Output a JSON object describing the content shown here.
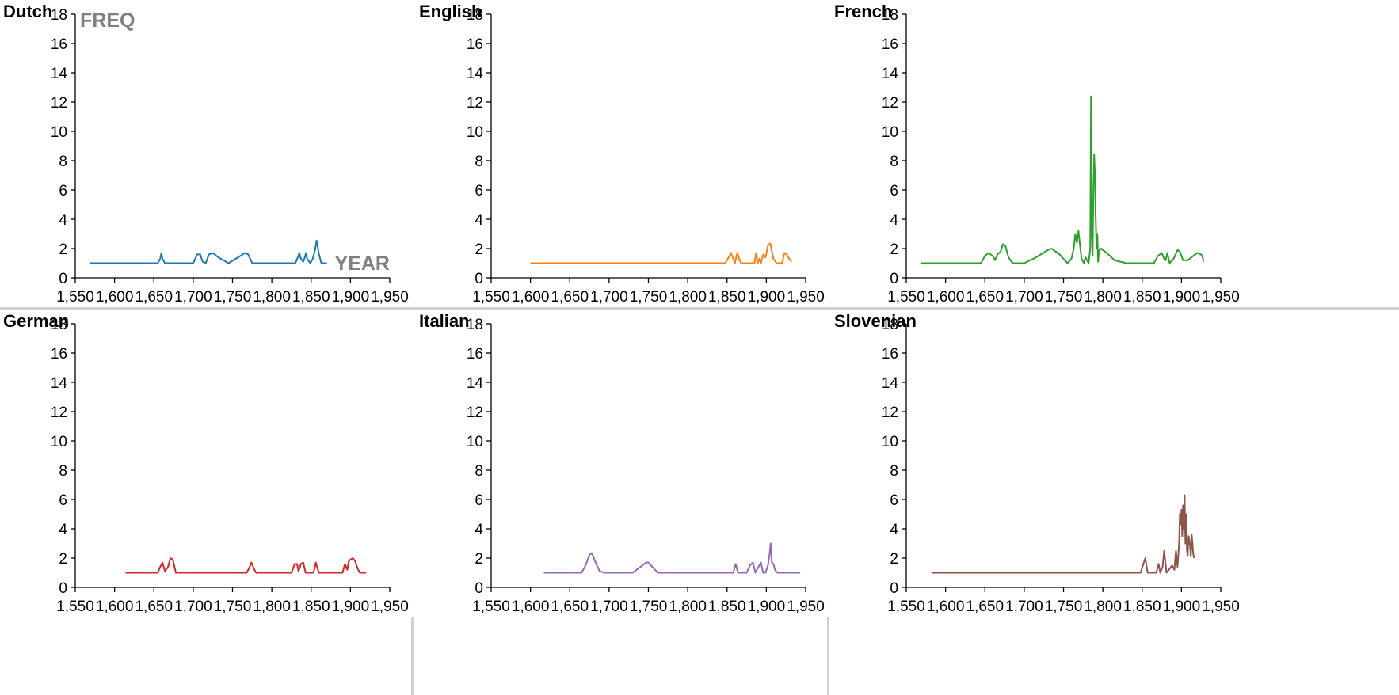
{
  "axis_titles": {
    "y": "FREQ",
    "x": "YEAR"
  },
  "chart_data": [
    {
      "type": "line",
      "title": "Dutch",
      "color": "#1f77b4",
      "xlim": [
        1550,
        1950
      ],
      "ylim": [
        0,
        18
      ],
      "x_ticks": [
        "1,550",
        "1,600",
        "1,650",
        "1,700",
        "1,750",
        "1,800",
        "1,850",
        "1,900",
        "1,950"
      ],
      "y_ticks": [
        "0",
        "2",
        "4",
        "6",
        "8",
        "10",
        "12",
        "14",
        "16",
        "18"
      ],
      "series": [
        {
          "x": [
            1568,
            1655,
            1658,
            1659.5,
            1661,
            1664,
            1700,
            1705,
            1709,
            1712,
            1716,
            1720,
            1725,
            1732,
            1745,
            1760,
            1766,
            1770,
            1775,
            1830,
            1833,
            1835,
            1837,
            1840,
            1842,
            1843.5,
            1845,
            1849,
            1852,
            1855,
            1857,
            1860,
            1863,
            1866,
            1870
          ],
          "y": [
            1.0,
            1.0,
            1.3,
            1.7,
            1.3,
            1.0,
            1.0,
            1.6,
            1.6,
            1.1,
            1.0,
            1.6,
            1.7,
            1.4,
            1.0,
            1.5,
            1.7,
            1.6,
            1.0,
            1.0,
            1.4,
            1.7,
            1.3,
            1.1,
            1.4,
            1.7,
            1.3,
            1.0,
            1.3,
            1.9,
            2.55,
            1.6,
            1.0,
            1.0,
            1.0
          ]
        }
      ]
    },
    {
      "type": "line",
      "title": "English",
      "color": "#ff7f0e",
      "xlim": [
        1550,
        1950
      ],
      "ylim": [
        0,
        18
      ],
      "x_ticks": [
        "1,550",
        "1,600",
        "1,650",
        "1,700",
        "1,750",
        "1,800",
        "1,850",
        "1,900",
        "1,950"
      ],
      "y_ticks": [
        "0",
        "2",
        "4",
        "6",
        "8",
        "10",
        "12",
        "14",
        "16",
        "18"
      ],
      "series": [
        {
          "x": [
            1600,
            1848,
            1851,
            1855,
            1858,
            1860,
            1863,
            1866,
            1868,
            1885,
            1887,
            1889,
            1891,
            1893,
            1896,
            1899,
            1902,
            1905,
            1909,
            1913,
            1920,
            1923,
            1926,
            1929,
            1932
          ],
          "y": [
            1.0,
            1.0,
            1.3,
            1.7,
            1.3,
            1.0,
            1.7,
            1.2,
            1.0,
            1.0,
            1.7,
            1.0,
            1.3,
            1.0,
            1.6,
            1.4,
            2.2,
            2.35,
            1.3,
            1.0,
            1.0,
            1.7,
            1.6,
            1.3,
            1.1
          ]
        }
      ]
    },
    {
      "type": "line",
      "title": "French",
      "color": "#2ca02c",
      "xlim": [
        1550,
        1950
      ],
      "ylim": [
        0,
        18
      ],
      "x_ticks": [
        "1,550",
        "1,600",
        "1,650",
        "1,700",
        "1,750",
        "1,800",
        "1,850",
        "1,900",
        "1,950"
      ],
      "y_ticks": [
        "0",
        "2",
        "4",
        "6",
        "8",
        "10",
        "12",
        "14",
        "16",
        "18"
      ],
      "series": [
        {
          "x": [
            1568,
            1645,
            1650,
            1655,
            1660,
            1663,
            1666,
            1670,
            1673,
            1676,
            1680,
            1685,
            1700,
            1715,
            1730,
            1735,
            1745,
            1755,
            1760,
            1763,
            1765,
            1767,
            1769,
            1771,
            1773,
            1776,
            1778,
            1780,
            1782,
            1784,
            1785,
            1786,
            1787,
            1788,
            1789,
            1790,
            1791,
            1792,
            1793,
            1794,
            1795,
            1796,
            1798,
            1800,
            1805,
            1815,
            1830,
            1850,
            1865,
            1870,
            1875,
            1878,
            1880,
            1882,
            1885,
            1890,
            1895,
            1898,
            1902,
            1908,
            1915,
            1920,
            1925,
            1927,
            1928
          ],
          "y": [
            1.0,
            1.0,
            1.5,
            1.7,
            1.5,
            1.2,
            1.6,
            1.8,
            2.3,
            2.2,
            1.4,
            1.0,
            1.0,
            1.4,
            1.9,
            2.0,
            1.6,
            1.0,
            1.3,
            2.0,
            3.0,
            2.4,
            3.2,
            2.2,
            1.3,
            1.0,
            1.4,
            1.2,
            1.0,
            2.0,
            12.4,
            3.0,
            1.5,
            6.0,
            8.4,
            7.0,
            4.0,
            2.0,
            3.0,
            1.1,
            1.8,
            1.9,
            2.0,
            1.9,
            1.7,
            1.2,
            1.0,
            1.0,
            1.0,
            1.5,
            1.7,
            1.3,
            1.2,
            1.7,
            1.0,
            1.3,
            1.9,
            1.8,
            1.2,
            1.2,
            1.5,
            1.7,
            1.6,
            1.4,
            1.1
          ]
        }
      ]
    },
    {
      "type": "line",
      "title": "German",
      "color": "#d62728",
      "xlim": [
        1550,
        1950
      ],
      "ylim": [
        0,
        18
      ],
      "x_ticks": [
        "1,550",
        "1,600",
        "1,650",
        "1,700",
        "1,750",
        "1,800",
        "1,850",
        "1,900",
        "1,950"
      ],
      "y_ticks": [
        "0",
        "2",
        "4",
        "6",
        "8",
        "10",
        "12",
        "14",
        "16",
        "18"
      ],
      "series": [
        {
          "x": [
            1614,
            1655,
            1658,
            1661,
            1664,
            1668,
            1671,
            1674,
            1678,
            1768,
            1771,
            1774,
            1777,
            1780,
            1825,
            1829,
            1832,
            1834,
            1837,
            1840,
            1843,
            1853,
            1856,
            1858,
            1860,
            1890,
            1893,
            1896,
            1898,
            1900,
            1903,
            1906,
            1909,
            1912,
            1920
          ],
          "y": [
            1.0,
            1.0,
            1.4,
            1.7,
            1.1,
            1.4,
            2.0,
            1.9,
            1.0,
            1.0,
            1.3,
            1.7,
            1.3,
            1.0,
            1.0,
            1.6,
            1.6,
            1.1,
            1.6,
            1.7,
            1.0,
            1.0,
            1.7,
            1.3,
            1.0,
            1.0,
            1.6,
            1.2,
            1.8,
            1.9,
            2.0,
            1.8,
            1.3,
            1.0,
            1.0
          ]
        }
      ]
    },
    {
      "type": "line",
      "title": "Italian",
      "color": "#9467bd",
      "xlim": [
        1550,
        1950
      ],
      "ylim": [
        0,
        18
      ],
      "x_ticks": [
        "1,550",
        "1,600",
        "1,650",
        "1,700",
        "1,750",
        "1,800",
        "1,850",
        "1,900",
        "1,950"
      ],
      "y_ticks": [
        "0",
        "2",
        "4",
        "6",
        "8",
        "10",
        "12",
        "14",
        "16",
        "18"
      ],
      "series": [
        {
          "x": [
            1617,
            1665,
            1670,
            1675,
            1678,
            1682,
            1688,
            1695,
            1730,
            1740,
            1747,
            1750,
            1755,
            1762,
            1858,
            1861,
            1864,
            1867,
            1875,
            1879,
            1883,
            1886,
            1890,
            1893,
            1896,
            1899,
            1902,
            1904,
            1905.5,
            1907,
            1909,
            1911,
            1914,
            1920,
            1943
          ],
          "y": [
            1.0,
            1.0,
            1.5,
            2.2,
            2.35,
            1.8,
            1.1,
            1.0,
            1.0,
            1.4,
            1.7,
            1.7,
            1.4,
            1.0,
            1.0,
            1.6,
            1.0,
            1.0,
            1.0,
            1.5,
            1.7,
            1.0,
            1.4,
            1.7,
            1.0,
            1.0,
            1.5,
            2.2,
            3.0,
            1.7,
            1.6,
            1.2,
            1.0,
            1.0,
            1.0
          ]
        }
      ]
    },
    {
      "type": "line",
      "title": "Slovenian",
      "color": "#8c564b",
      "xlim": [
        1550,
        1950
      ],
      "ylim": [
        0,
        18
      ],
      "x_ticks": [
        "1,550",
        "1,600",
        "1,650",
        "1,700",
        "1,750",
        "1,800",
        "1,850",
        "1,900",
        "1,950"
      ],
      "y_ticks": [
        "0",
        "2",
        "4",
        "6",
        "8",
        "10",
        "12",
        "14",
        "16",
        "18"
      ],
      "series": [
        {
          "x": [
            1583,
            1848,
            1851,
            1854,
            1857,
            1868,
            1871,
            1873,
            1876,
            1878,
            1881,
            1884,
            1888,
            1891,
            1893,
            1895,
            1897,
            1898,
            1899,
            1900,
            1901,
            1902,
            1903,
            1904,
            1905,
            1906,
            1907,
            1908,
            1909,
            1910,
            1911,
            1912,
            1913,
            1914,
            1915,
            1916
          ],
          "y": [
            1.0,
            1.0,
            1.5,
            2.0,
            1.0,
            1.0,
            1.6,
            1.0,
            1.4,
            2.5,
            1.0,
            1.2,
            1.5,
            1.2,
            2.5,
            1.4,
            3.0,
            5.0,
            4.3,
            5.3,
            3.5,
            5.6,
            4.0,
            6.3,
            3.0,
            5.0,
            2.5,
            2.2,
            3.5,
            3.3,
            2.8,
            2.1,
            3.6,
            3.0,
            2.3,
            2.0
          ]
        }
      ]
    }
  ]
}
